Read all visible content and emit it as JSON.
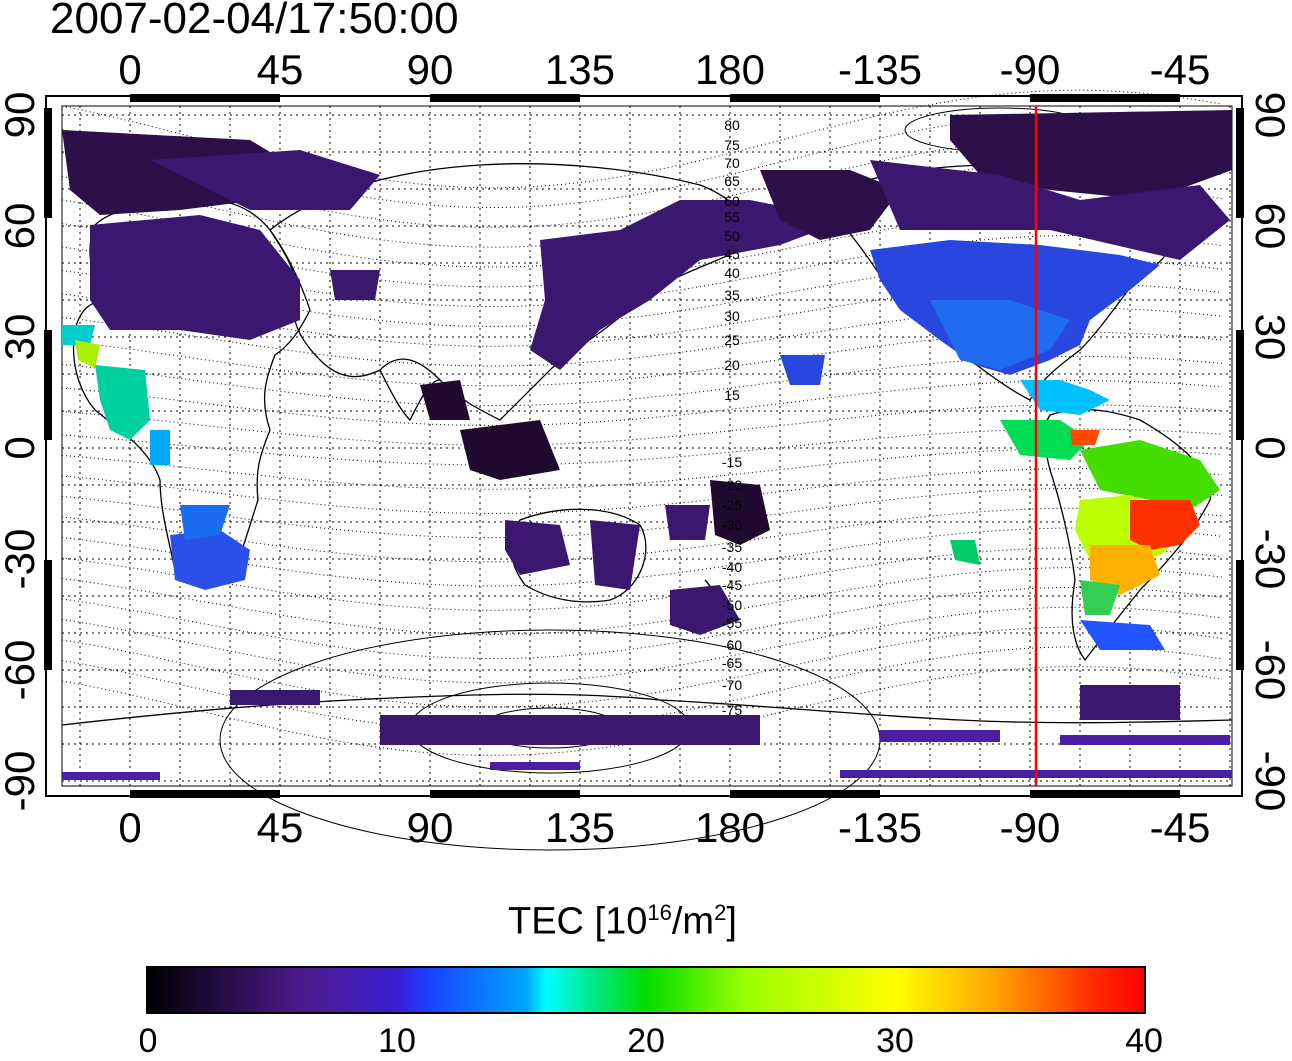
{
  "timestamp": "2007-02-04/17:50:00",
  "map": {
    "longitude_ticks_top": [
      "0",
      "45",
      "90",
      "135",
      "180",
      "-135",
      "-90",
      "-45"
    ],
    "longitude_ticks_bottom": [
      "0",
      "45",
      "90",
      "135",
      "180",
      "-135",
      "-90",
      "-45"
    ],
    "latitude_ticks": [
      "90",
      "60",
      "30",
      "0",
      "-30",
      "-60",
      "-90"
    ],
    "contour_labels_north": [
      "80",
      "75",
      "70",
      "65",
      "60",
      "55",
      "50",
      "45",
      "40",
      "35",
      "30",
      "25",
      "20",
      "15"
    ],
    "contour_labels_south": [
      "-15",
      "-20",
      "-25",
      "-30",
      "-35",
      "-40",
      "-45",
      "-50",
      "-55",
      "-60",
      "-65",
      "-70",
      "-75"
    ],
    "meridian_line_longitude": -90,
    "meridian_line_color": "#ff0000"
  },
  "colorbar": {
    "title_main": "TEC  [10",
    "title_sup": "16",
    "title_mid": "/m",
    "title_sup2": "2",
    "title_end": "]",
    "ticks": [
      "0",
      "10",
      "20",
      "30",
      "40"
    ],
    "range": [
      0,
      40
    ]
  }
}
